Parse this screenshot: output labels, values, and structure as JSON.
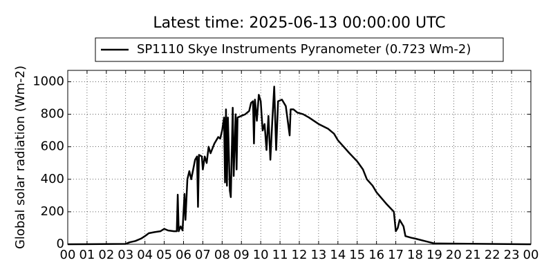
{
  "chart_data": {
    "type": "line",
    "title": "Latest time: 2025-06-13 00:00:00 UTC",
    "y_label": "Global solar radiation (Wm-2)",
    "x": [
      0,
      3.0,
      3.2,
      3.5,
      3.8,
      4.0,
      4.2,
      4.5,
      4.8,
      5.0,
      5.2,
      5.5,
      5.65,
      5.7,
      5.75,
      5.85,
      5.95,
      6.05,
      6.1,
      6.2,
      6.3,
      6.4,
      6.5,
      6.6,
      6.7,
      6.75,
      6.8,
      6.95,
      7.0,
      7.1,
      7.2,
      7.3,
      7.4,
      7.5,
      7.6,
      7.8,
      7.9,
      8.0,
      8.1,
      8.15,
      8.2,
      8.25,
      8.3,
      8.4,
      8.45,
      8.55,
      8.6,
      8.7,
      8.75,
      8.8,
      9.0,
      9.2,
      9.4,
      9.5,
      9.6,
      9.65,
      9.7,
      9.8,
      9.9,
      10.0,
      10.1,
      10.2,
      10.3,
      10.4,
      10.5,
      10.6,
      10.7,
      10.8,
      10.9,
      11.1,
      11.3,
      11.5,
      11.55,
      11.7,
      11.9,
      12.2,
      12.5,
      13.0,
      13.5,
      13.8,
      14.0,
      14.3,
      14.6,
      15.0,
      15.3,
      15.5,
      15.8,
      16.0,
      16.5,
      16.9,
      17.0,
      17.1,
      17.2,
      17.4,
      17.5,
      17.8,
      18.0,
      18.5,
      19.0,
      24.0
    ],
    "series": [
      {
        "name": "SP1110 Skye Instruments Pyranometer (0.723 Wm-2)",
        "color": "#000000",
        "values": [
          0,
          2,
          12,
          20,
          35,
          50,
          68,
          75,
          80,
          95,
          85,
          80,
          80,
          305,
          80,
          110,
          85,
          310,
          150,
          400,
          450,
          400,
          460,
          520,
          540,
          230,
          550,
          540,
          460,
          540,
          500,
          600,
          560,
          590,
          620,
          660,
          650,
          700,
          780,
          380,
          830,
          360,
          780,
          330,
          290,
          840,
          420,
          800,
          460,
          780,
          790,
          800,
          820,
          870,
          880,
          620,
          890,
          760,
          920,
          880,
          700,
          740,
          580,
          790,
          520,
          760,
          970,
          580,
          880,
          890,
          850,
          670,
          830,
          830,
          810,
          800,
          780,
          740,
          710,
          680,
          640,
          600,
          560,
          510,
          460,
          400,
          360,
          320,
          250,
          200,
          80,
          100,
          150,
          110,
          50,
          40,
          35,
          20,
          5,
          0
        ]
      }
    ],
    "xlim": [
      0,
      24
    ],
    "xticks": [
      {
        "value": 0,
        "label": "00"
      },
      {
        "value": 1,
        "label": "01"
      },
      {
        "value": 2,
        "label": "02"
      },
      {
        "value": 3,
        "label": "03"
      },
      {
        "value": 4,
        "label": "04"
      },
      {
        "value": 5,
        "label": "05"
      },
      {
        "value": 6,
        "label": "06"
      },
      {
        "value": 7,
        "label": "07"
      },
      {
        "value": 8,
        "label": "08"
      },
      {
        "value": 9,
        "label": "09"
      },
      {
        "value": 10,
        "label": "10"
      },
      {
        "value": 11,
        "label": "11"
      },
      {
        "value": 12,
        "label": "12"
      },
      {
        "value": 13,
        "label": "13"
      },
      {
        "value": 14,
        "label": "14"
      },
      {
        "value": 15,
        "label": "15"
      },
      {
        "value": 16,
        "label": "16"
      },
      {
        "value": 17,
        "label": "17"
      },
      {
        "value": 18,
        "label": "18"
      },
      {
        "value": 19,
        "label": "19"
      },
      {
        "value": 20,
        "label": "20"
      },
      {
        "value": 21,
        "label": "21"
      },
      {
        "value": 22,
        "label": "22"
      },
      {
        "value": 23,
        "label": "23"
      },
      {
        "value": 24,
        "label": "00"
      }
    ],
    "ylim": [
      0,
      1070
    ],
    "yticks": [
      0,
      200,
      400,
      600,
      800,
      1000
    ],
    "grid": true,
    "legend": "upper center"
  }
}
